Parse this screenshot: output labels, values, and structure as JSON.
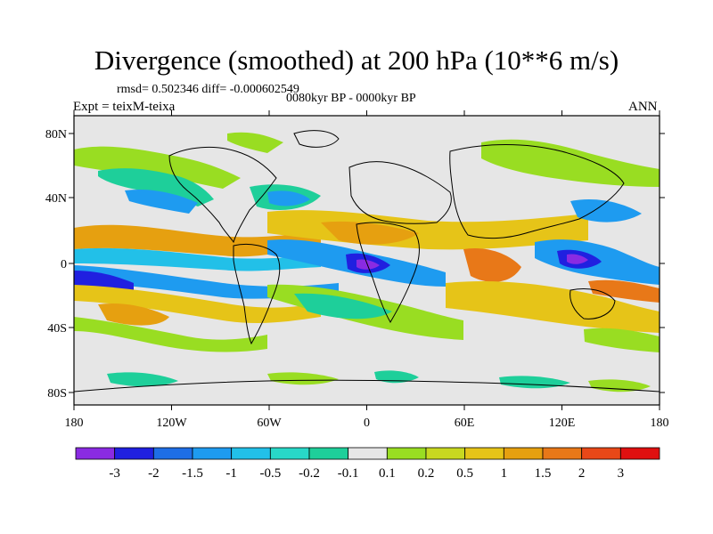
{
  "title": "Divergence (smoothed) at 200 hPa (10**6 m/s)",
  "stats_line": "rmsd= 0.502346 diff= -0.000602549",
  "period": "0080kyr BP - 0000kyr BP",
  "experiment": "Expt = teixM-teixa",
  "season": "ANN",
  "lat_labels": [
    "80N",
    "40N",
    "0",
    "40S",
    "80S"
  ],
  "lon_labels": [
    "180",
    "120W",
    "60W",
    "0",
    "60E",
    "120E",
    "180"
  ],
  "colorbar": {
    "levels": [
      "-3",
      "-2",
      "-1.5",
      "-1",
      "-0.5",
      "-0.2",
      "-0.1",
      "0.1",
      "0.2",
      "0.5",
      "1",
      "1.5",
      "2",
      "3"
    ],
    "colors": [
      "#8a2be2",
      "#2020e0",
      "#1e6ee6",
      "#1e9bf0",
      "#22c0e8",
      "#28d8c8",
      "#1ecf9a",
      "#e6e6e6",
      "#99dd22",
      "#c8d820",
      "#e6c418",
      "#e6a010",
      "#e87818",
      "#e84818",
      "#e01010"
    ]
  }
}
